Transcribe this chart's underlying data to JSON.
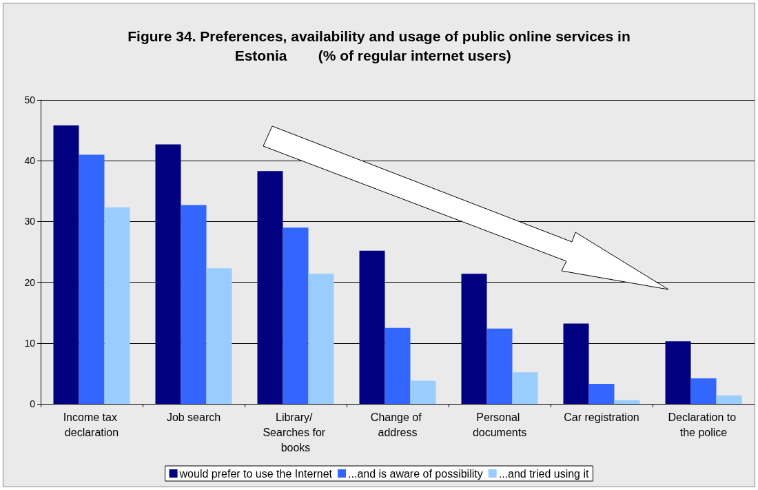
{
  "chart_data": {
    "type": "bar",
    "title": "Figure 34. Preferences, availability and usage of public online services in Estonia",
    "subtitle": "(% of regular internet users)",
    "categories": [
      "Income tax declaration",
      "Job search",
      "Library/ Searches for books",
      "Change of address",
      "Personal documents",
      "Car registration",
      "Declaration to the police"
    ],
    "series": [
      {
        "name": "would prefer to use the Internet",
        "color": "#000080",
        "values": [
          45.8,
          42.7,
          38.3,
          25.2,
          21.4,
          13.2,
          10.3
        ]
      },
      {
        "name": "...and is aware of possibility",
        "color": "#3366ff",
        "values": [
          41.0,
          32.7,
          29.0,
          12.5,
          12.4,
          3.3,
          4.2
        ]
      },
      {
        "name": "...and tried using it",
        "color": "#99ccff",
        "values": [
          32.3,
          22.3,
          21.4,
          3.8,
          5.2,
          0.6,
          1.4
        ]
      }
    ],
    "ylim": [
      0,
      50
    ],
    "yticks": [
      0,
      10,
      20,
      30,
      40,
      50
    ],
    "grid": "y",
    "legend": "bottom"
  }
}
